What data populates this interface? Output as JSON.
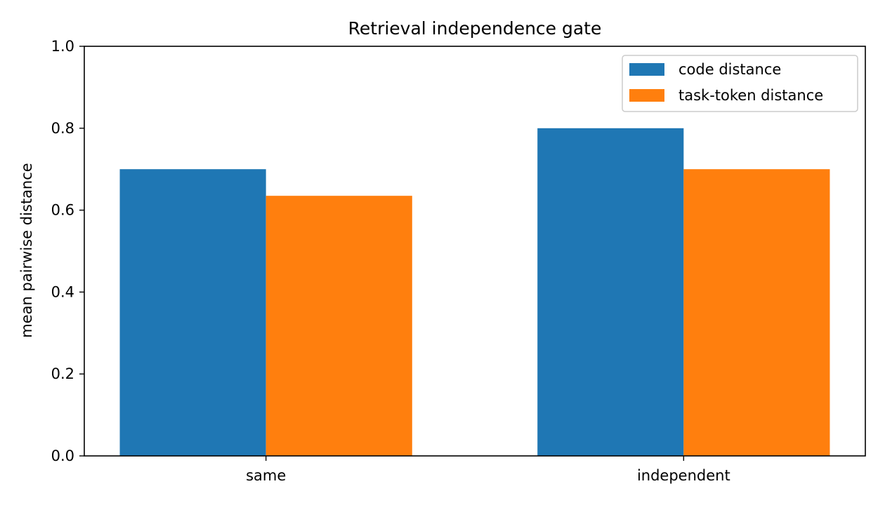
{
  "chart_data": {
    "type": "bar",
    "title": "Retrieval independence gate",
    "xlabel": "",
    "ylabel": "mean pairwise distance",
    "categories": [
      "same",
      "independent"
    ],
    "series": [
      {
        "name": "code distance",
        "color": "#1f77b4",
        "values": [
          0.7,
          0.8
        ]
      },
      {
        "name": "task-token distance",
        "color": "#ff7f0e",
        "values": [
          0.635,
          0.7
        ]
      }
    ],
    "ylim": [
      0,
      1.0
    ],
    "yticks": [
      "0.0",
      "0.2",
      "0.4",
      "0.6",
      "0.8",
      "1.0"
    ],
    "grid": false,
    "legend_position": "top-right"
  }
}
